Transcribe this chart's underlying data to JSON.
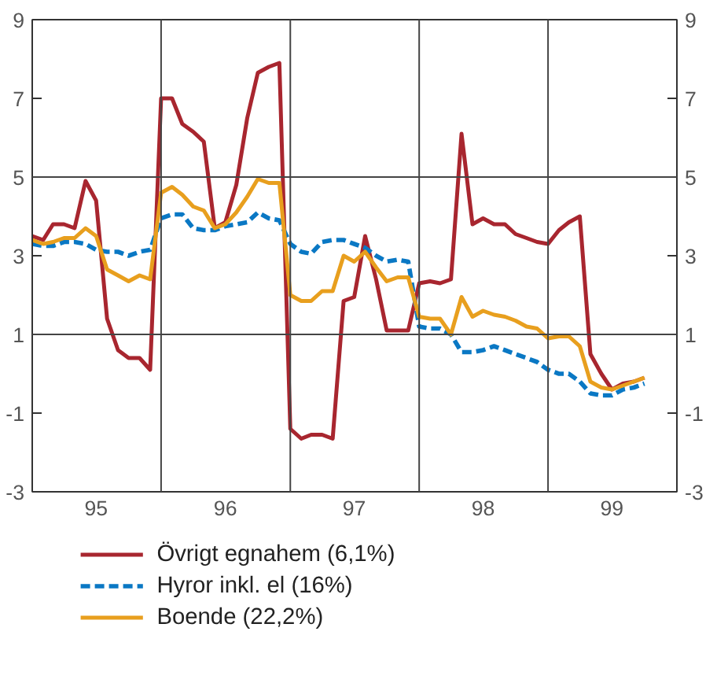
{
  "chart_data": {
    "type": "line",
    "x": [
      "1995-01",
      "1995-02",
      "1995-03",
      "1995-04",
      "1995-05",
      "1995-06",
      "1995-07",
      "1995-08",
      "1995-09",
      "1995-10",
      "1995-11",
      "1995-12",
      "1996-01",
      "1996-02",
      "1996-03",
      "1996-04",
      "1996-05",
      "1996-06",
      "1996-07",
      "1996-08",
      "1996-09",
      "1996-10",
      "1996-11",
      "1996-12",
      "1997-01",
      "1997-02",
      "1997-03",
      "1997-04",
      "1997-05",
      "1997-06",
      "1997-07",
      "1997-08",
      "1997-09",
      "1997-10",
      "1997-11",
      "1997-12",
      "1998-01",
      "1998-02",
      "1998-03",
      "1998-04",
      "1998-05",
      "1998-06",
      "1998-07",
      "1998-08",
      "1998-09",
      "1998-10",
      "1998-11",
      "1998-12",
      "1999-01",
      "1999-02",
      "1999-03",
      "1999-04",
      "1999-05",
      "1999-06",
      "1999-07",
      "1999-08",
      "1999-09",
      "1999-10"
    ],
    "series": [
      {
        "name": "Övrigt egnahem (6,1%)",
        "color": "#a8262f",
        "line_style": "solid",
        "values": [
          3.5,
          3.4,
          3.8,
          3.8,
          3.7,
          4.9,
          4.4,
          1.4,
          0.6,
          0.4,
          0.4,
          0.1,
          7.0,
          7.0,
          6.35,
          6.15,
          5.9,
          3.7,
          3.85,
          4.8,
          6.5,
          7.65,
          7.8,
          7.9,
          -1.4,
          -1.65,
          -1.55,
          -1.55,
          -1.65,
          1.85,
          1.95,
          3.5,
          2.4,
          1.1,
          1.1,
          1.1,
          2.3,
          2.35,
          2.3,
          2.4,
          6.1,
          3.8,
          3.95,
          3.8,
          3.8,
          3.55,
          3.45,
          3.35,
          3.3,
          3.65,
          3.85,
          4.0,
          0.5,
          0.0,
          -0.4,
          -0.25,
          -0.2,
          -0.1
        ]
      },
      {
        "name": "Hyror inkl. el (16%)",
        "color": "#0a78c4",
        "line_style": "dashed",
        "values": [
          3.3,
          3.25,
          3.25,
          3.35,
          3.35,
          3.3,
          3.15,
          3.1,
          3.1,
          3.0,
          3.1,
          3.15,
          3.95,
          4.05,
          4.05,
          3.7,
          3.65,
          3.65,
          3.75,
          3.8,
          3.85,
          4.1,
          3.95,
          3.9,
          3.3,
          3.1,
          3.05,
          3.35,
          3.4,
          3.4,
          3.3,
          3.2,
          3.0,
          2.85,
          2.9,
          2.85,
          1.2,
          1.15,
          1.15,
          1.0,
          0.55,
          0.55,
          0.6,
          0.7,
          0.6,
          0.5,
          0.4,
          0.3,
          0.1,
          0.0,
          0.0,
          -0.2,
          -0.5,
          -0.55,
          -0.55,
          -0.4,
          -0.35,
          -0.25
        ]
      },
      {
        "name": "Boende (22,2%)",
        "color": "#e89f1e",
        "line_style": "solid",
        "values": [
          3.4,
          3.3,
          3.35,
          3.45,
          3.45,
          3.7,
          3.5,
          2.65,
          2.5,
          2.35,
          2.5,
          2.4,
          4.6,
          4.75,
          4.55,
          4.25,
          4.15,
          3.7,
          3.8,
          4.1,
          4.5,
          4.95,
          4.85,
          4.85,
          2.0,
          1.85,
          1.85,
          2.1,
          2.1,
          3.0,
          2.85,
          3.1,
          2.7,
          2.35,
          2.45,
          2.45,
          1.45,
          1.4,
          1.4,
          1.0,
          1.95,
          1.45,
          1.6,
          1.5,
          1.45,
          1.35,
          1.2,
          1.15,
          0.9,
          0.95,
          0.95,
          0.7,
          -0.2,
          -0.35,
          -0.4,
          -0.3,
          -0.2,
          -0.1
        ]
      }
    ],
    "xlim": [
      "1995-01",
      "2000-01"
    ],
    "xticks": [
      {
        "value": "1995-07",
        "label": "95"
      },
      {
        "value": "1996-07",
        "label": "96"
      },
      {
        "value": "1997-07",
        "label": "97"
      },
      {
        "value": "1998-07",
        "label": "98"
      },
      {
        "value": "1999-07",
        "label": "99"
      }
    ],
    "ylim": [
      -3,
      9
    ],
    "yticks": [
      -3,
      -1,
      1,
      3,
      5,
      7,
      9
    ],
    "y2lim": [
      -3,
      9
    ],
    "y2ticks": [
      -3,
      -1,
      1,
      3,
      5,
      7,
      9
    ],
    "ref_lines": [
      {
        "axis": "y",
        "value": 1
      },
      {
        "axis": "y",
        "value": 5
      },
      {
        "axis": "x",
        "value": "1996-01"
      },
      {
        "axis": "x",
        "value": "1997-01"
      },
      {
        "axis": "x",
        "value": "1998-01"
      },
      {
        "axis": "x",
        "value": "1999-01"
      }
    ],
    "legend": "bottom"
  }
}
